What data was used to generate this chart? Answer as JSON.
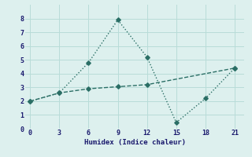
{
  "line1_x": [
    0,
    3,
    6,
    9,
    12,
    15,
    18,
    21
  ],
  "line1_y": [
    2.0,
    2.6,
    4.8,
    7.9,
    5.2,
    0.45,
    2.2,
    4.4
  ],
  "line2_x": [
    0,
    3,
    6,
    9,
    12,
    21
  ],
  "line2_y": [
    2.0,
    2.6,
    2.9,
    3.05,
    3.2,
    4.4
  ],
  "xlabel": "Humidex (Indice chaleur)",
  "xlim": [
    -0.5,
    22
  ],
  "ylim": [
    0,
    9
  ],
  "xticks": [
    0,
    3,
    6,
    9,
    12,
    15,
    18,
    21
  ],
  "yticks": [
    0,
    1,
    2,
    3,
    4,
    5,
    6,
    7,
    8
  ],
  "line_color": "#2a6e65",
  "bg_color": "#ddf0ee",
  "grid_color": "#b8dcd8"
}
